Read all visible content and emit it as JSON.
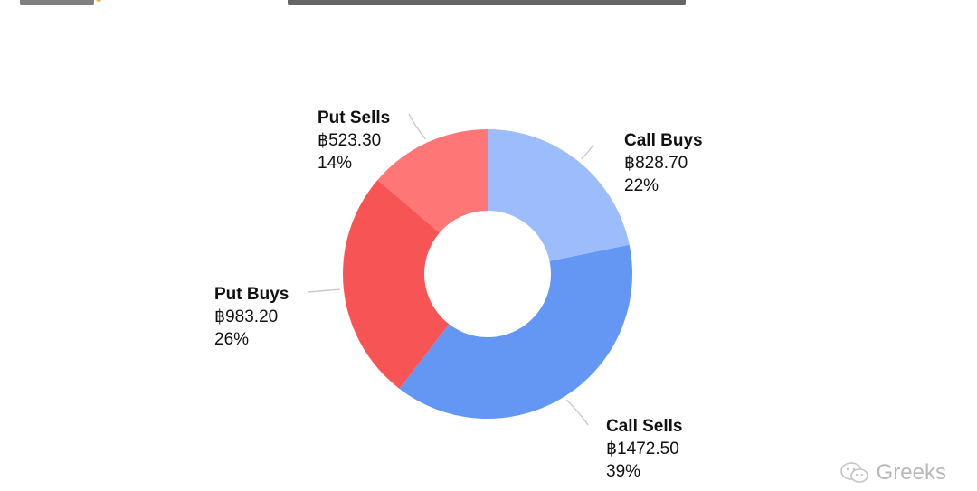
{
  "chart_data": {
    "type": "pie",
    "donut": true,
    "currency_symbol": "฿",
    "slices": [
      {
        "label": "Call Buys",
        "value": 828.7,
        "value_text": "฿828.70",
        "percent_text": "22%",
        "color": "#9dbcfb"
      },
      {
        "label": "Call Sells",
        "value": 1472.5,
        "value_text": "฿1472.50",
        "percent_text": "39%",
        "color": "#6497f4"
      },
      {
        "label": "Put Buys",
        "value": 983.2,
        "value_text": "฿983.20",
        "percent_text": "26%",
        "color": "#f75555"
      },
      {
        "label": "Put Sells",
        "value": 523.3,
        "value_text": "฿523.30",
        "percent_text": "14%",
        "color": "#fe7675"
      }
    ]
  },
  "header": {
    "accent_color": "#f5a623"
  },
  "watermark": {
    "text": "Greeks",
    "icon": "wechat-icon"
  }
}
